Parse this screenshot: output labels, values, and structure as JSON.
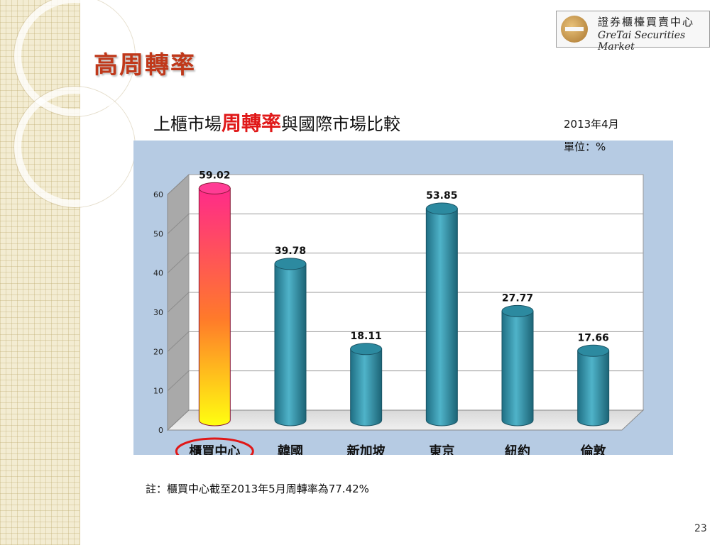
{
  "logo": {
    "cn": "證券櫃檯買賣中心",
    "en": "GreTai Securities Market"
  },
  "slide": {
    "title": "高周轉率",
    "page_number": "23"
  },
  "chart_heading": {
    "part1": "上櫃市場",
    "highlight": "周轉率",
    "part2": "與國際市場比較"
  },
  "notes": {
    "date": "2013年4月",
    "unit": "單位：%",
    "footnote": "註：櫃買中心截至2013年5月周轉率為77.42%"
  },
  "colors": {
    "title": "#c0381a",
    "highlight": "#e01818",
    "bar": "#2f8fa6",
    "circle": "#e01818",
    "panel": "#b6cbe3"
  },
  "chart_data": {
    "type": "bar",
    "categories": [
      "櫃買中心",
      "韓國",
      "新加坡",
      "東京",
      "紐約",
      "倫敦"
    ],
    "values": [
      59.02,
      39.78,
      18.11,
      53.85,
      27.77,
      17.66
    ],
    "value_labels": [
      "59.02",
      "39.78",
      "18.11",
      "53.85",
      "27.77",
      "17.66"
    ],
    "ylim": [
      0,
      60
    ],
    "yticks": [
      "0",
      "10",
      "20",
      "30",
      "40",
      "50",
      "60"
    ],
    "grid": true,
    "highlighted_category": "櫃買中心"
  }
}
